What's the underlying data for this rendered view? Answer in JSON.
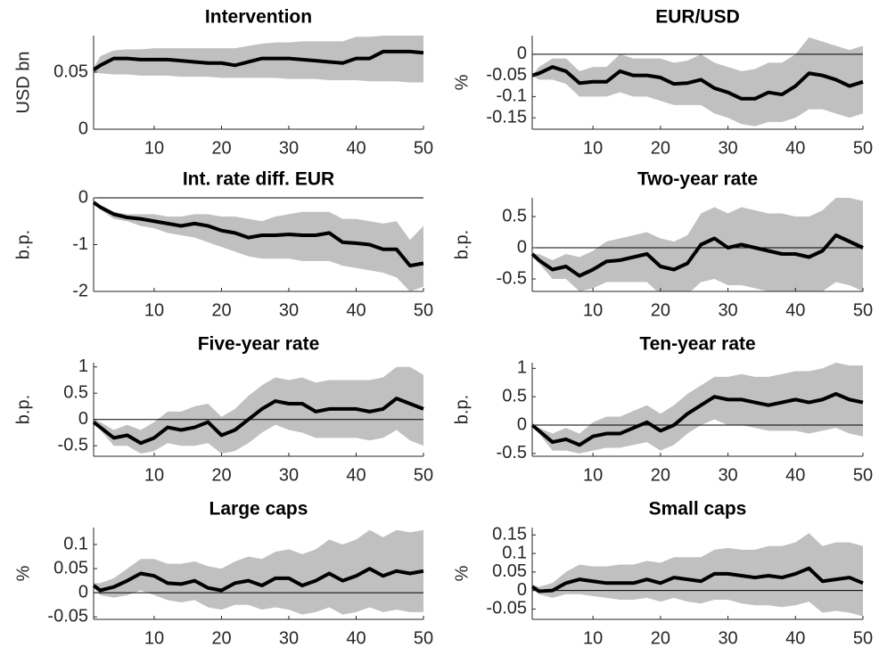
{
  "chart_data": [
    {
      "type": "line",
      "title": "Intervention",
      "ylabel": "USD bn",
      "color": "#000000",
      "band_color": "#c0c0c0",
      "x": [
        1,
        2,
        4,
        6,
        8,
        10,
        12,
        14,
        16,
        18,
        20,
        22,
        24,
        26,
        28,
        30,
        32,
        34,
        36,
        38,
        40,
        42,
        44,
        46,
        48,
        50
      ],
      "values": [
        0.052,
        0.056,
        0.062,
        0.062,
        0.061,
        0.061,
        0.061,
        0.06,
        0.059,
        0.058,
        0.058,
        0.056,
        0.059,
        0.062,
        0.062,
        0.062,
        0.061,
        0.06,
        0.059,
        0.058,
        0.062,
        0.062,
        0.068,
        0.068,
        0.068,
        0.067
      ],
      "lower": [
        0.05,
        0.049,
        0.048,
        0.048,
        0.047,
        0.047,
        0.047,
        0.046,
        0.046,
        0.046,
        0.045,
        0.045,
        0.045,
        0.045,
        0.045,
        0.044,
        0.044,
        0.044,
        0.043,
        0.043,
        0.043,
        0.042,
        0.042,
        0.042,
        0.041,
        0.041
      ],
      "upper": [
        0.054,
        0.064,
        0.069,
        0.07,
        0.07,
        0.071,
        0.071,
        0.071,
        0.071,
        0.071,
        0.071,
        0.071,
        0.073,
        0.075,
        0.076,
        0.076,
        0.077,
        0.077,
        0.077,
        0.077,
        0.081,
        0.081,
        0.082,
        0.082,
        0.082,
        0.082
      ],
      "xlim": [
        1,
        50
      ],
      "xticks": [
        10,
        20,
        30,
        40,
        50
      ],
      "ylim": [
        0,
        0.082
      ],
      "yticks": [
        0,
        0.05
      ]
    },
    {
      "type": "line",
      "title": "EUR/USD",
      "ylabel": "%",
      "color": "#000000",
      "band_color": "#c0c0c0",
      "reference_line": 0,
      "x": [
        1,
        2,
        4,
        6,
        8,
        10,
        12,
        14,
        16,
        18,
        20,
        22,
        24,
        26,
        28,
        30,
        32,
        34,
        36,
        38,
        40,
        42,
        44,
        46,
        48,
        50
      ],
      "values": [
        -0.05,
        -0.045,
        -0.03,
        -0.04,
        -0.068,
        -0.065,
        -0.065,
        -0.04,
        -0.05,
        -0.05,
        -0.055,
        -0.07,
        -0.068,
        -0.06,
        -0.08,
        -0.09,
        -0.105,
        -0.105,
        -0.09,
        -0.095,
        -0.075,
        -0.045,
        -0.05,
        -0.06,
        -0.075,
        -0.065
      ],
      "lower": [
        -0.05,
        -0.06,
        -0.06,
        -0.07,
        -0.1,
        -0.1,
        -0.1,
        -0.09,
        -0.1,
        -0.1,
        -0.11,
        -0.12,
        -0.12,
        -0.12,
        -0.14,
        -0.15,
        -0.165,
        -0.17,
        -0.16,
        -0.16,
        -0.15,
        -0.13,
        -0.13,
        -0.14,
        -0.15,
        -0.14
      ],
      "upper": [
        -0.05,
        -0.03,
        -0.01,
        -0.01,
        -0.04,
        -0.03,
        -0.03,
        0.0,
        -0.01,
        -0.01,
        -0.01,
        -0.02,
        -0.015,
        0.0,
        -0.02,
        -0.03,
        -0.04,
        -0.035,
        -0.02,
        -0.02,
        0.0,
        0.04,
        0.03,
        0.02,
        0.01,
        0.02
      ],
      "xlim": [
        1,
        50
      ],
      "xticks": [
        10,
        20,
        30,
        40,
        50
      ],
      "ylim": [
        -0.177,
        0.044
      ],
      "yticks": [
        -0.15,
        -0.1,
        -0.05,
        0
      ]
    },
    {
      "type": "line",
      "title": "Int. rate diff. EUR",
      "ylabel": "b.p.",
      "color": "#000000",
      "band_color": "#c0c0c0",
      "reference_line": 0,
      "x": [
        1,
        2,
        4,
        6,
        8,
        10,
        12,
        14,
        16,
        18,
        20,
        22,
        24,
        26,
        28,
        30,
        32,
        34,
        36,
        38,
        40,
        42,
        44,
        46,
        48,
        50
      ],
      "values": [
        -0.1,
        -0.2,
        -0.35,
        -0.42,
        -0.45,
        -0.5,
        -0.55,
        -0.6,
        -0.55,
        -0.6,
        -0.7,
        -0.75,
        -0.85,
        -0.8,
        -0.8,
        -0.78,
        -0.8,
        -0.8,
        -0.75,
        -0.95,
        -0.97,
        -1.0,
        -1.1,
        -1.1,
        -1.45,
        -1.4
      ],
      "lower": [
        -0.1,
        -0.25,
        -0.45,
        -0.5,
        -0.6,
        -0.65,
        -0.75,
        -0.8,
        -0.85,
        -0.95,
        -1.05,
        -1.15,
        -1.25,
        -1.3,
        -1.3,
        -1.3,
        -1.35,
        -1.35,
        -1.35,
        -1.45,
        -1.5,
        -1.55,
        -1.6,
        -1.7,
        -2.0,
        -1.9
      ],
      "upper": [
        -0.05,
        -0.15,
        -0.3,
        -0.35,
        -0.35,
        -0.35,
        -0.4,
        -0.4,
        -0.35,
        -0.35,
        -0.4,
        -0.4,
        -0.45,
        -0.5,
        -0.4,
        -0.35,
        -0.3,
        -0.3,
        -0.3,
        -0.45,
        -0.45,
        -0.5,
        -0.55,
        -0.5,
        -0.9,
        -0.6
      ],
      "xlim": [
        1,
        50
      ],
      "xticks": [
        10,
        20,
        30,
        40,
        50
      ],
      "ylim": [
        -2,
        0
      ],
      "yticks": [
        -2,
        -1,
        0
      ]
    },
    {
      "type": "line",
      "title": "Two-year rate",
      "ylabel": "b.p.",
      "color": "#000000",
      "band_color": "#c0c0c0",
      "reference_line": 0,
      "x": [
        1,
        2,
        4,
        6,
        8,
        10,
        12,
        14,
        16,
        18,
        20,
        22,
        24,
        26,
        28,
        30,
        32,
        34,
        36,
        38,
        40,
        42,
        44,
        46,
        48,
        50
      ],
      "values": [
        -0.1,
        -0.2,
        -0.35,
        -0.3,
        -0.45,
        -0.35,
        -0.22,
        -0.2,
        -0.15,
        -0.1,
        -0.3,
        -0.35,
        -0.25,
        0.05,
        0.15,
        0.0,
        0.05,
        0.0,
        -0.05,
        -0.1,
        -0.1,
        -0.15,
        -0.05,
        0.2,
        0.1,
        0.0
      ],
      "lower": [
        -0.1,
        -0.25,
        -0.5,
        -0.5,
        -0.7,
        -0.65,
        -0.55,
        -0.55,
        -0.55,
        -0.55,
        -0.75,
        -0.8,
        -0.75,
        -0.55,
        -0.5,
        -0.6,
        -0.6,
        -0.65,
        -0.7,
        -0.7,
        -0.75,
        -0.75,
        -0.7,
        -0.55,
        -0.6,
        -0.7
      ],
      "upper": [
        -0.1,
        -0.1,
        -0.2,
        -0.1,
        -0.15,
        -0.05,
        0.1,
        0.15,
        0.2,
        0.25,
        0.15,
        0.1,
        0.2,
        0.55,
        0.65,
        0.55,
        0.65,
        0.6,
        0.55,
        0.55,
        0.5,
        0.5,
        0.6,
        0.8,
        0.8,
        0.75
      ],
      "xlim": [
        1,
        50
      ],
      "xticks": [
        10,
        20,
        30,
        40,
        50
      ],
      "ylim": [
        -0.7,
        0.8
      ],
      "yticks": [
        -0.5,
        0,
        0.5
      ]
    },
    {
      "type": "line",
      "title": "Five-year rate",
      "ylabel": "b.p.",
      "color": "#000000",
      "band_color": "#c0c0c0",
      "reference_line": 0,
      "x": [
        1,
        2,
        4,
        6,
        8,
        10,
        12,
        14,
        16,
        18,
        20,
        22,
        24,
        26,
        28,
        30,
        32,
        34,
        36,
        38,
        40,
        42,
        44,
        46,
        48,
        50
      ],
      "values": [
        -0.05,
        -0.15,
        -0.35,
        -0.3,
        -0.45,
        -0.35,
        -0.15,
        -0.2,
        -0.15,
        -0.05,
        -0.3,
        -0.2,
        0.0,
        0.2,
        0.35,
        0.3,
        0.3,
        0.15,
        0.2,
        0.2,
        0.2,
        0.15,
        0.2,
        0.4,
        0.3,
        0.2
      ],
      "lower": [
        -0.05,
        -0.2,
        -0.5,
        -0.5,
        -0.65,
        -0.6,
        -0.45,
        -0.5,
        -0.5,
        -0.45,
        -0.65,
        -0.6,
        -0.45,
        -0.25,
        -0.1,
        -0.2,
        -0.25,
        -0.35,
        -0.35,
        -0.35,
        -0.35,
        -0.4,
        -0.35,
        -0.2,
        -0.4,
        -0.5
      ],
      "upper": [
        0.0,
        -0.05,
        -0.2,
        -0.1,
        -0.2,
        -0.05,
        0.15,
        0.15,
        0.25,
        0.3,
        0.05,
        0.2,
        0.45,
        0.65,
        0.8,
        0.75,
        0.8,
        0.7,
        0.75,
        0.75,
        0.75,
        0.75,
        0.8,
        1.0,
        1.0,
        0.85
      ],
      "xlim": [
        1,
        50
      ],
      "xticks": [
        10,
        20,
        30,
        40,
        50
      ],
      "ylim": [
        -0.7,
        1.08
      ],
      "yticks": [
        -0.5,
        0,
        0.5,
        1
      ]
    },
    {
      "type": "line",
      "title": "Ten-year rate",
      "ylabel": "b.p.",
      "color": "#000000",
      "band_color": "#c0c0c0",
      "reference_line": 0,
      "x": [
        1,
        2,
        4,
        6,
        8,
        10,
        12,
        14,
        16,
        18,
        20,
        22,
        24,
        26,
        28,
        30,
        32,
        34,
        36,
        38,
        40,
        42,
        44,
        46,
        48,
        50
      ],
      "values": [
        0.0,
        -0.1,
        -0.3,
        -0.25,
        -0.35,
        -0.2,
        -0.15,
        -0.15,
        -0.05,
        0.05,
        -0.1,
        0.0,
        0.2,
        0.35,
        0.5,
        0.45,
        0.45,
        0.4,
        0.35,
        0.4,
        0.45,
        0.4,
        0.45,
        0.55,
        0.45,
        0.4
      ],
      "lower": [
        0.0,
        -0.15,
        -0.45,
        -0.45,
        -0.5,
        -0.45,
        -0.4,
        -0.4,
        -0.35,
        -0.3,
        -0.45,
        -0.35,
        -0.15,
        0.0,
        0.1,
        0.0,
        0.0,
        -0.05,
        -0.1,
        -0.1,
        -0.1,
        -0.15,
        -0.1,
        -0.05,
        -0.15,
        -0.2
      ],
      "upper": [
        0.0,
        -0.05,
        -0.15,
        -0.05,
        -0.15,
        0.05,
        0.15,
        0.15,
        0.25,
        0.35,
        0.2,
        0.35,
        0.55,
        0.7,
        0.85,
        0.85,
        0.9,
        0.85,
        0.85,
        0.9,
        0.95,
        0.95,
        1.0,
        1.1,
        1.05,
        1.05
      ],
      "xlim": [
        1,
        50
      ],
      "xticks": [
        10,
        20,
        30,
        40,
        50
      ],
      "ylim": [
        -0.55,
        1.1
      ],
      "yticks": [
        -0.5,
        0,
        0.5,
        1
      ]
    },
    {
      "type": "line",
      "title": "Large caps",
      "ylabel": "%",
      "color": "#000000",
      "band_color": "#c0c0c0",
      "reference_line": 0,
      "x": [
        1,
        2,
        4,
        6,
        8,
        10,
        12,
        14,
        16,
        18,
        20,
        22,
        24,
        26,
        28,
        30,
        32,
        34,
        36,
        38,
        40,
        42,
        44,
        46,
        48,
        50
      ],
      "values": [
        0.015,
        0.005,
        0.012,
        0.025,
        0.04,
        0.035,
        0.02,
        0.018,
        0.025,
        0.01,
        0.005,
        0.02,
        0.025,
        0.015,
        0.03,
        0.03,
        0.015,
        0.025,
        0.04,
        0.025,
        0.035,
        0.05,
        0.035,
        0.045,
        0.04,
        0.045
      ],
      "lower": [
        0.01,
        -0.005,
        -0.01,
        -0.005,
        0.005,
        -0.005,
        -0.015,
        -0.02,
        -0.015,
        -0.03,
        -0.035,
        -0.025,
        -0.025,
        -0.035,
        -0.03,
        -0.035,
        -0.045,
        -0.04,
        -0.03,
        -0.045,
        -0.04,
        -0.03,
        -0.04,
        -0.035,
        -0.04,
        -0.04
      ],
      "upper": [
        0.02,
        0.02,
        0.03,
        0.05,
        0.07,
        0.07,
        0.06,
        0.06,
        0.065,
        0.055,
        0.05,
        0.065,
        0.075,
        0.07,
        0.085,
        0.09,
        0.08,
        0.09,
        0.11,
        0.1,
        0.11,
        0.13,
        0.115,
        0.13,
        0.125,
        0.13
      ],
      "xlim": [
        1,
        50
      ],
      "xticks": [
        10,
        20,
        30,
        40,
        50
      ],
      "ylim": [
        -0.055,
        0.135
      ],
      "yticks": [
        -0.05,
        0,
        0.05,
        0.1
      ]
    },
    {
      "type": "line",
      "title": "Small caps",
      "ylabel": "%",
      "color": "#000000",
      "band_color": "#c0c0c0",
      "reference_line": 0,
      "x": [
        1,
        2,
        4,
        6,
        8,
        10,
        12,
        14,
        16,
        18,
        20,
        22,
        24,
        26,
        28,
        30,
        32,
        34,
        36,
        38,
        40,
        42,
        44,
        46,
        48,
        50
      ],
      "values": [
        0.01,
        -0.002,
        0.0,
        0.02,
        0.03,
        0.025,
        0.02,
        0.02,
        0.02,
        0.03,
        0.02,
        0.035,
        0.03,
        0.025,
        0.045,
        0.045,
        0.04,
        0.035,
        0.04,
        0.035,
        0.045,
        0.06,
        0.025,
        0.03,
        0.035,
        0.02
      ],
      "lower": [
        0.01,
        -0.01,
        -0.02,
        -0.01,
        -0.01,
        -0.015,
        -0.02,
        -0.025,
        -0.025,
        -0.02,
        -0.03,
        -0.02,
        -0.03,
        -0.035,
        -0.025,
        -0.025,
        -0.035,
        -0.04,
        -0.04,
        -0.045,
        -0.04,
        -0.03,
        -0.06,
        -0.055,
        -0.06,
        -0.07
      ],
      "upper": [
        0.015,
        0.01,
        0.02,
        0.05,
        0.07,
        0.065,
        0.065,
        0.07,
        0.07,
        0.08,
        0.075,
        0.09,
        0.09,
        0.09,
        0.11,
        0.115,
        0.11,
        0.11,
        0.12,
        0.12,
        0.13,
        0.155,
        0.12,
        0.13,
        0.13,
        0.12
      ],
      "xlim": [
        1,
        50
      ],
      "xticks": [
        10,
        20,
        30,
        40,
        50
      ],
      "ylim": [
        -0.078,
        0.17
      ],
      "yticks": [
        -0.05,
        0,
        0.05,
        0.1,
        0.15
      ]
    }
  ]
}
